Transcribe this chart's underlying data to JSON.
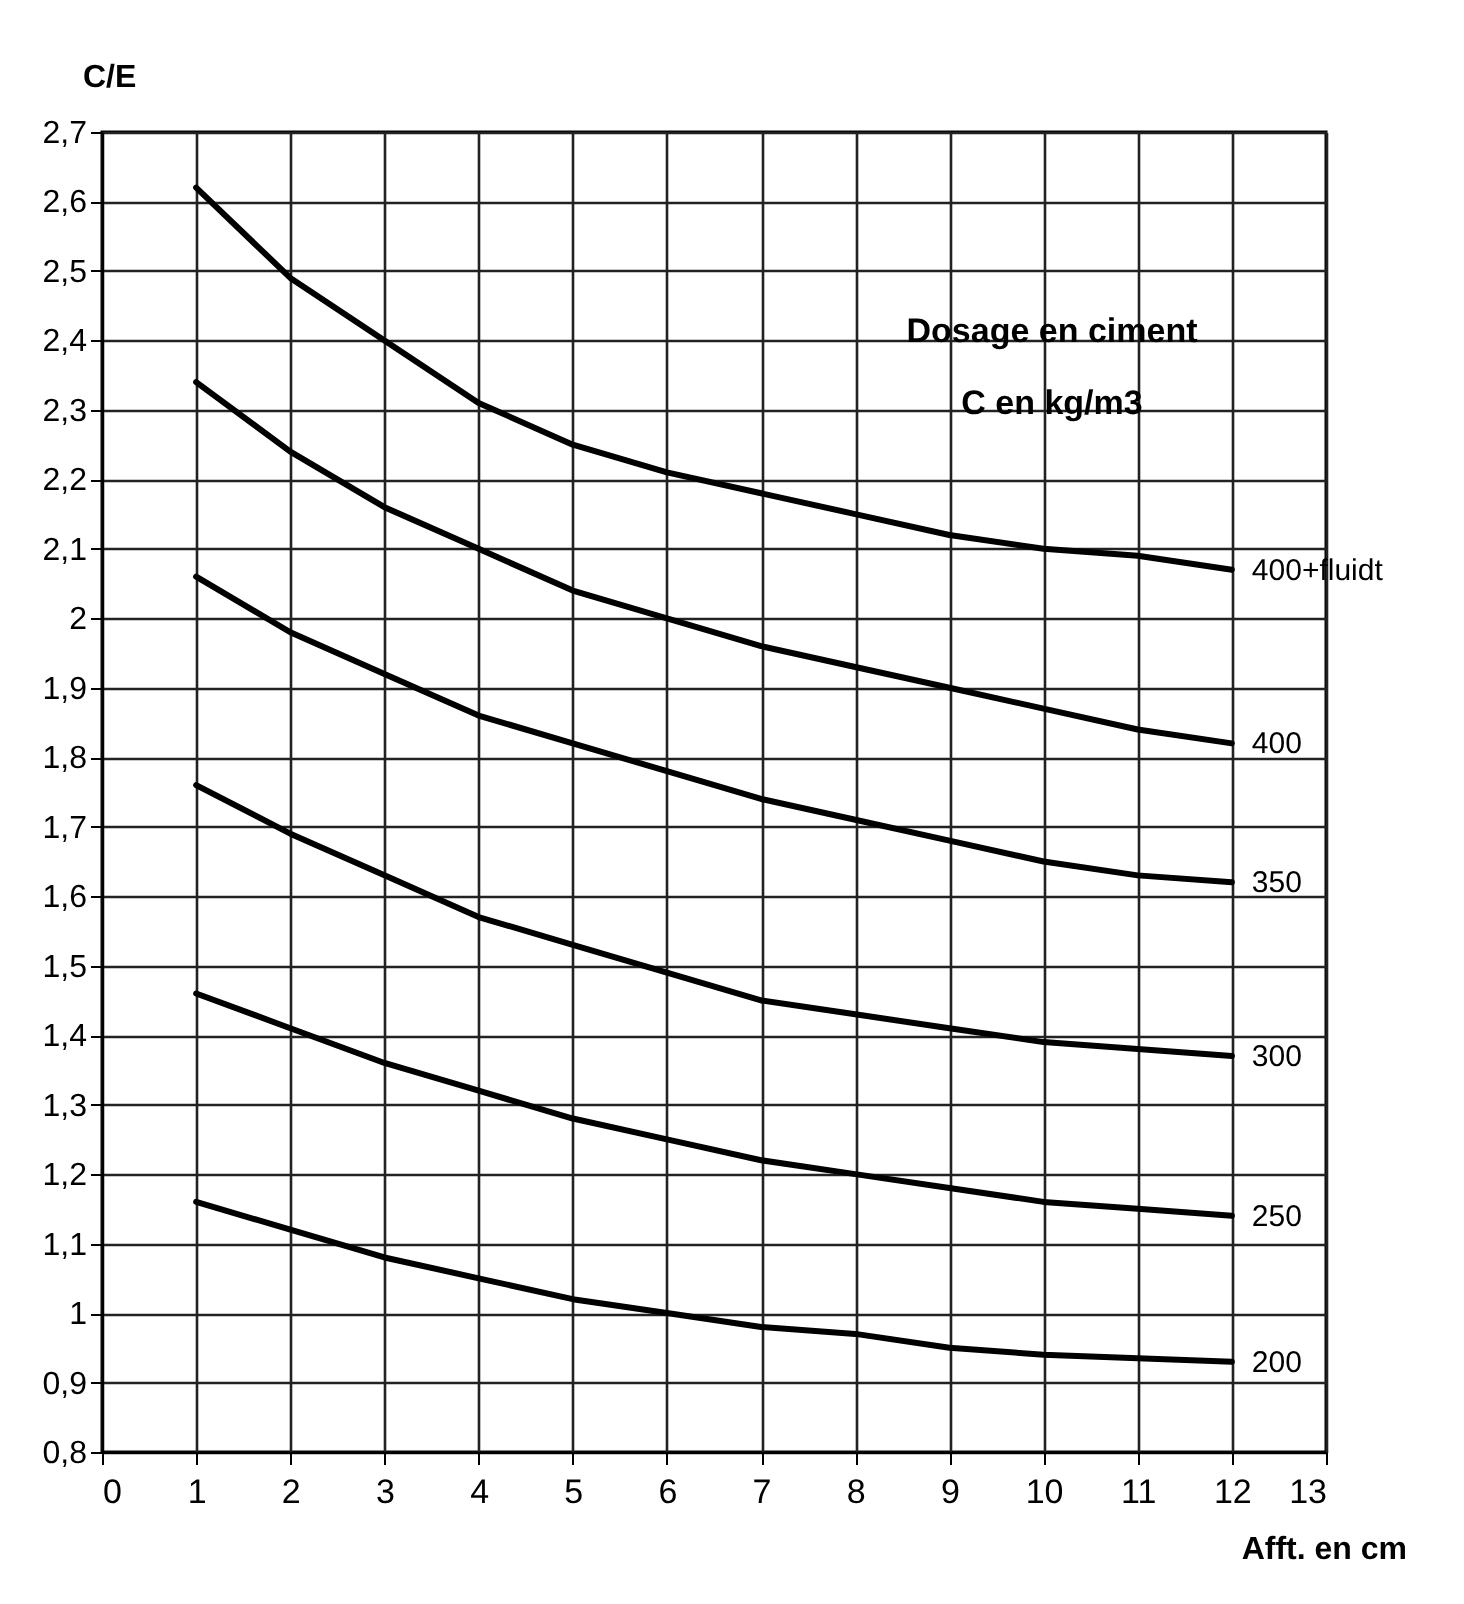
{
  "chart_data": {
    "type": "line",
    "xlabel": "Afft. en cm",
    "ylabel": "C/E",
    "annotations": [
      "Dosage en ciment",
      "C en kg/m3"
    ],
    "x": [
      1,
      2,
      3,
      4,
      5,
      6,
      7,
      8,
      9,
      10,
      11,
      12
    ],
    "series": [
      {
        "name": "400+fluidt",
        "color": "#000000",
        "values": [
          2.62,
          2.49,
          2.4,
          2.31,
          2.25,
          2.21,
          2.18,
          2.15,
          2.12,
          2.1,
          2.09,
          2.07
        ]
      },
      {
        "name": "400",
        "color": "#000000",
        "values": [
          2.34,
          2.24,
          2.16,
          2.1,
          2.04,
          2.0,
          1.96,
          1.93,
          1.9,
          1.87,
          1.84,
          1.82
        ]
      },
      {
        "name": "350",
        "color": "#000000",
        "values": [
          2.06,
          1.98,
          1.92,
          1.86,
          1.82,
          1.78,
          1.74,
          1.71,
          1.68,
          1.65,
          1.63,
          1.62
        ]
      },
      {
        "name": "300",
        "color": "#000000",
        "values": [
          1.76,
          1.69,
          1.63,
          1.57,
          1.53,
          1.49,
          1.45,
          1.43,
          1.41,
          1.39,
          1.38,
          1.37
        ]
      },
      {
        "name": "250",
        "color": "#000000",
        "values": [
          1.46,
          1.41,
          1.36,
          1.32,
          1.28,
          1.25,
          1.22,
          1.2,
          1.18,
          1.16,
          1.15,
          1.14
        ]
      },
      {
        "name": "200",
        "color": "#000000",
        "values": [
          1.16,
          1.12,
          1.08,
          1.05,
          1.02,
          1.0,
          0.98,
          0.97,
          0.95,
          0.94,
          0.935,
          0.93
        ]
      }
    ],
    "xlim": [
      0,
      13
    ],
    "xticks": [
      0,
      1,
      2,
      3,
      4,
      5,
      6,
      7,
      8,
      9,
      10,
      11,
      12,
      13
    ],
    "ylim": [
      0.8,
      2.7
    ],
    "yticks": [
      {
        "value": 0.8,
        "label": "0,8"
      },
      {
        "value": 0.9,
        "label": "0,9"
      },
      1,
      {
        "value": 1.1,
        "label": "1,1"
      },
      {
        "value": 1.2,
        "label": "1,2"
      },
      {
        "value": 1.3,
        "label": "1,3"
      },
      {
        "value": 1.4,
        "label": "1,4"
      },
      {
        "value": 1.5,
        "label": "1,5"
      },
      {
        "value": 1.6,
        "label": "1,6"
      },
      {
        "value": 1.7,
        "label": "1,7"
      },
      {
        "value": 1.8,
        "label": "1,8"
      },
      {
        "value": 1.9,
        "label": "1,9"
      },
      2,
      {
        "value": 2.1,
        "label": "2,1"
      },
      {
        "value": 2.2,
        "label": "2,2"
      },
      {
        "value": 2.3,
        "label": "2,3"
      },
      {
        "value": 2.4,
        "label": "2,4"
      },
      {
        "value": 2.5,
        "label": "2,5"
      },
      {
        "value": 2.6,
        "label": "2,6"
      },
      {
        "value": 2.7,
        "label": "2,7"
      }
    ],
    "grid": true,
    "legend": false,
    "marker": "none",
    "line_style": "solid"
  }
}
